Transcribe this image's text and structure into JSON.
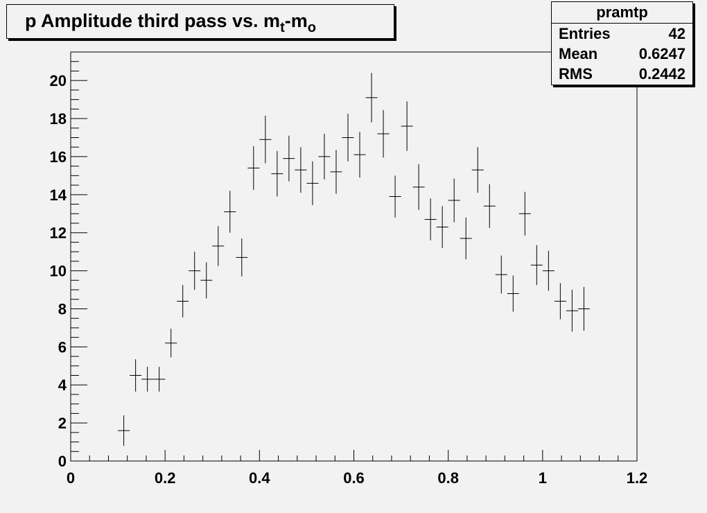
{
  "title": {
    "prefix": "p Amplitude third pass vs. m",
    "sub1": "t",
    "mid": "-m",
    "sub2": "o"
  },
  "stats": {
    "name": "pramtp",
    "rows": [
      {
        "key": "Entries",
        "value": "42"
      },
      {
        "key": "Mean",
        "value": "0.6247"
      },
      {
        "key": "RMS",
        "value": "0.2442"
      }
    ]
  },
  "colors": {
    "background": "#f2f2f2",
    "frame": "#000000",
    "marker": "#000000"
  },
  "chart_data": {
    "type": "scatter",
    "style": "error-bars",
    "title": "p Amplitude third pass vs. mt-mo",
    "xlabel": "",
    "ylabel": "",
    "xlim": [
      0,
      1.2
    ],
    "ylim": [
      0,
      21.5
    ],
    "x_ticks": [
      "0",
      "0.2",
      "0.4",
      "0.6",
      "0.8",
      "1",
      "1.2"
    ],
    "y_ticks": [
      "0",
      "2",
      "4",
      "6",
      "8",
      "10",
      "12",
      "14",
      "16",
      "18",
      "20"
    ],
    "bin_width": 0.025,
    "grid": false,
    "x": [
      0.1125,
      0.1375,
      0.1625,
      0.1875,
      0.2125,
      0.2375,
      0.2625,
      0.2875,
      0.3125,
      0.3375,
      0.3625,
      0.3875,
      0.4125,
      0.4375,
      0.4625,
      0.4875,
      0.5125,
      0.5375,
      0.5625,
      0.5875,
      0.6125,
      0.6375,
      0.6625,
      0.6875,
      0.7125,
      0.7375,
      0.7625,
      0.7875,
      0.8125,
      0.8375,
      0.8625,
      0.8875,
      0.9125,
      0.9375,
      0.9625,
      0.9875,
      1.0125,
      1.0375,
      1.0625,
      1.0875
    ],
    "y": [
      1.6,
      4.5,
      4.3,
      4.3,
      6.2,
      8.4,
      10.0,
      9.5,
      11.3,
      13.1,
      10.7,
      15.4,
      16.9,
      15.1,
      15.9,
      15.3,
      14.6,
      16.0,
      15.2,
      17.0,
      16.1,
      19.1,
      17.2,
      13.9,
      17.6,
      14.4,
      12.7,
      12.3,
      13.7,
      11.7,
      15.3,
      13.4,
      9.8,
      8.8,
      13.0,
      10.3,
      10.0,
      8.4,
      7.9,
      8.0
    ],
    "yerr": [
      0.8,
      0.85,
      0.65,
      0.65,
      0.75,
      0.85,
      1.0,
      0.95,
      1.05,
      1.1,
      1.0,
      1.15,
      1.25,
      1.2,
      1.2,
      1.2,
      1.15,
      1.2,
      1.15,
      1.25,
      1.2,
      1.3,
      1.25,
      1.1,
      1.3,
      1.2,
      1.1,
      1.1,
      1.15,
      1.1,
      1.2,
      1.15,
      1.0,
      0.95,
      1.15,
      1.05,
      1.05,
      0.95,
      1.1,
      1.15
    ]
  }
}
